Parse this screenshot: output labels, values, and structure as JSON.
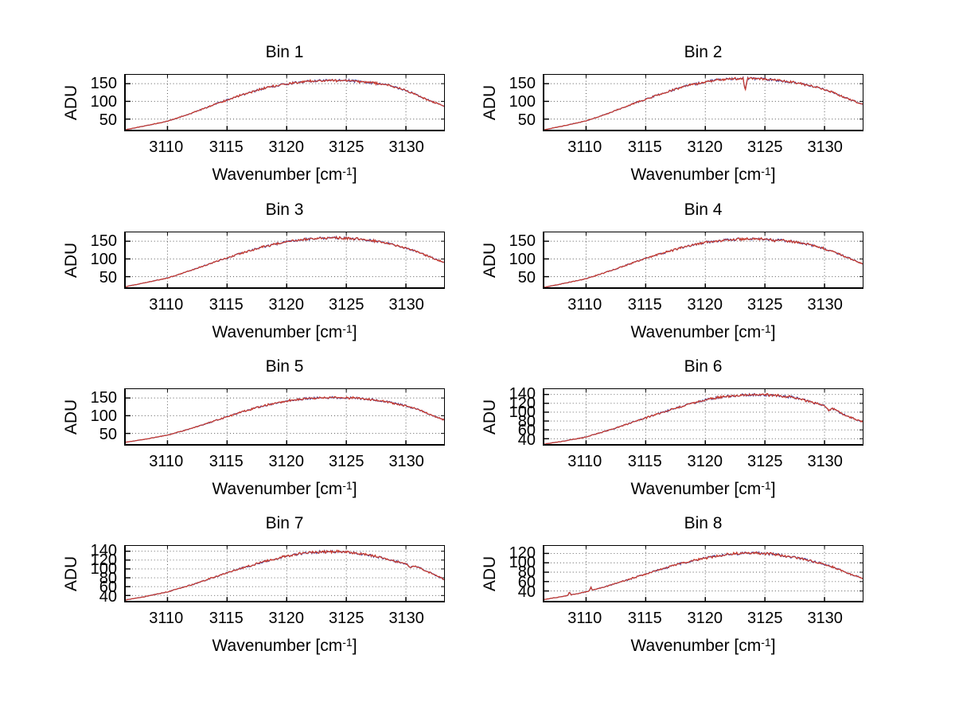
{
  "window": {
    "background": "#ffffff"
  },
  "chart_data": {
    "type": "line",
    "layout": {
      "rows": 4,
      "cols": 2,
      "grid": true,
      "grid_style": "dotted",
      "legend": "none"
    },
    "xlabel": {
      "pre": "Wavenumber [cm",
      "sup": "-1",
      "post": "]"
    },
    "xlim": [
      3106.5,
      3133.2
    ],
    "xticks": [
      3110,
      3115,
      3120,
      3125,
      3130
    ],
    "axis_color": "#000000",
    "grid_color": "#555555",
    "series_colors": {
      "underlay": "#3f3f9f",
      "overlay": "#cc3928"
    },
    "plots": [
      {
        "title": "Bin 1",
        "ylabel": "ADU",
        "ylim": [
          20,
          175
        ],
        "yticks": [
          50,
          100,
          150
        ],
        "noise": 3.0,
        "envelope": [
          [
            3106.5,
            20
          ],
          [
            3108,
            30
          ],
          [
            3110,
            44
          ],
          [
            3112,
            66
          ],
          [
            3114,
            92
          ],
          [
            3116,
            116
          ],
          [
            3118,
            136
          ],
          [
            3119.5,
            147
          ],
          [
            3121,
            154
          ],
          [
            3122.5,
            158
          ],
          [
            3124,
            159
          ],
          [
            3125.5,
            158
          ],
          [
            3127,
            153
          ],
          [
            3128.5,
            146
          ],
          [
            3130,
            131
          ],
          [
            3131,
            117
          ],
          [
            3132,
            102
          ],
          [
            3133.2,
            87
          ]
        ],
        "spikes": []
      },
      {
        "title": "Bin 2",
        "ylabel": "ADU",
        "ylim": [
          20,
          175
        ],
        "yticks": [
          50,
          100,
          150
        ],
        "noise": 3.0,
        "envelope": [
          [
            3106.5,
            20
          ],
          [
            3108,
            30
          ],
          [
            3110,
            45
          ],
          [
            3112,
            68
          ],
          [
            3114,
            94
          ],
          [
            3116,
            118
          ],
          [
            3118,
            140
          ],
          [
            3120,
            156
          ],
          [
            3121.5,
            162
          ],
          [
            3123,
            165
          ],
          [
            3124.5,
            164
          ],
          [
            3126,
            160
          ],
          [
            3127.5,
            153
          ],
          [
            3129,
            143
          ],
          [
            3130.5,
            128
          ],
          [
            3132,
            107
          ],
          [
            3133.2,
            92
          ]
        ],
        "spikes": [
          [
            3123.35,
            131,
            0.18
          ]
        ]
      },
      {
        "title": "Bin 3",
        "ylabel": "ADU",
        "ylim": [
          20,
          175
        ],
        "yticks": [
          50,
          100,
          150
        ],
        "noise": 3.0,
        "envelope": [
          [
            3106.5,
            22
          ],
          [
            3108,
            32
          ],
          [
            3110,
            46
          ],
          [
            3112,
            68
          ],
          [
            3114,
            92
          ],
          [
            3116,
            114
          ],
          [
            3118,
            134
          ],
          [
            3120,
            149
          ],
          [
            3122,
            157
          ],
          [
            3124,
            160
          ],
          [
            3126,
            157
          ],
          [
            3127.5,
            150
          ],
          [
            3129,
            140
          ],
          [
            3130.5,
            126
          ],
          [
            3132,
            106
          ],
          [
            3133.2,
            90
          ]
        ],
        "spikes": []
      },
      {
        "title": "Bin 4",
        "ylabel": "ADU",
        "ylim": [
          20,
          175
        ],
        "yticks": [
          50,
          100,
          150
        ],
        "noise": 3.0,
        "envelope": [
          [
            3106.5,
            20
          ],
          [
            3108,
            30
          ],
          [
            3110,
            44
          ],
          [
            3112,
            66
          ],
          [
            3114,
            90
          ],
          [
            3116,
            112
          ],
          [
            3118,
            132
          ],
          [
            3120,
            147
          ],
          [
            3122,
            154
          ],
          [
            3123.5,
            157
          ],
          [
            3125,
            156
          ],
          [
            3126.5,
            152
          ],
          [
            3128,
            146
          ],
          [
            3129.5,
            134
          ],
          [
            3131,
            117
          ],
          [
            3132,
            103
          ],
          [
            3133.2,
            86
          ]
        ],
        "spikes": [
          [
            3125.8,
            147,
            0.15
          ]
        ]
      },
      {
        "title": "Bin 5",
        "ylabel": "ADU",
        "ylim": [
          20,
          175
        ],
        "yticks": [
          50,
          100,
          150
        ],
        "noise": 2.6,
        "envelope": [
          [
            3106.5,
            25
          ],
          [
            3108,
            33
          ],
          [
            3110,
            45
          ],
          [
            3112,
            64
          ],
          [
            3114,
            86
          ],
          [
            3116,
            108
          ],
          [
            3118,
            128
          ],
          [
            3120,
            142
          ],
          [
            3121.5,
            148
          ],
          [
            3123,
            151
          ],
          [
            3125,
            151
          ],
          [
            3126.5,
            148
          ],
          [
            3128,
            142
          ],
          [
            3129.5,
            132
          ],
          [
            3131,
            118
          ],
          [
            3132,
            104
          ],
          [
            3133.2,
            88
          ]
        ],
        "spikes": []
      },
      {
        "title": "Bin 6",
        "ylabel": "ADU",
        "ylim": [
          28,
          152
        ],
        "yticks": [
          40,
          60,
          80,
          100,
          120,
          140
        ],
        "noise": 2.4,
        "envelope": [
          [
            3106.5,
            28
          ],
          [
            3108,
            34
          ],
          [
            3110,
            44
          ],
          [
            3112,
            60
          ],
          [
            3114,
            78
          ],
          [
            3116,
            96
          ],
          [
            3118,
            113
          ],
          [
            3120,
            128
          ],
          [
            3121.5,
            135
          ],
          [
            3123,
            139
          ],
          [
            3124.5,
            140
          ],
          [
            3126,
            138
          ],
          [
            3127.5,
            133
          ],
          [
            3129,
            122
          ],
          [
            3130,
            114
          ],
          [
            3130.3,
            104
          ],
          [
            3130.7,
            108
          ],
          [
            3131.5,
            96
          ],
          [
            3132.5,
            85
          ],
          [
            3133.2,
            78
          ]
        ],
        "spikes": []
      },
      {
        "title": "Bin 7",
        "ylabel": "ADU",
        "ylim": [
          28,
          152
        ],
        "yticks": [
          40,
          60,
          80,
          100,
          120,
          140
        ],
        "noise": 2.4,
        "envelope": [
          [
            3106.5,
            30
          ],
          [
            3108,
            37
          ],
          [
            3110,
            48
          ],
          [
            3112,
            64
          ],
          [
            3114,
            82
          ],
          [
            3116,
            100
          ],
          [
            3118,
            116
          ],
          [
            3120,
            129
          ],
          [
            3121.5,
            136
          ],
          [
            3123,
            139
          ],
          [
            3124.5,
            139
          ],
          [
            3126,
            135
          ],
          [
            3127.5,
            128
          ],
          [
            3129,
            118
          ],
          [
            3130.1,
            110
          ],
          [
            3130.4,
            103
          ],
          [
            3130.8,
            107
          ],
          [
            3131.5,
            97
          ],
          [
            3132.5,
            86
          ],
          [
            3133.2,
            76
          ]
        ],
        "spikes": []
      },
      {
        "title": "Bin 8",
        "ylabel": "ADU",
        "ylim": [
          19,
          136
        ],
        "yticks": [
          40,
          60,
          80,
          100,
          120
        ],
        "noise": 2.4,
        "envelope": [
          [
            3106.5,
            22
          ],
          [
            3108,
            28
          ],
          [
            3110,
            38
          ],
          [
            3112,
            52
          ],
          [
            3114,
            68
          ],
          [
            3116,
            84
          ],
          [
            3118,
            99
          ],
          [
            3120,
            110
          ],
          [
            3122,
            118
          ],
          [
            3123.5,
            121
          ],
          [
            3125,
            120
          ],
          [
            3126.5,
            116
          ],
          [
            3128,
            109
          ],
          [
            3129.5,
            100
          ],
          [
            3131,
            88
          ],
          [
            3132,
            77
          ],
          [
            3133.2,
            67
          ]
        ],
        "spikes": [
          [
            3108.6,
            39,
            0.12
          ],
          [
            3110.4,
            49,
            0.12
          ]
        ]
      }
    ]
  }
}
